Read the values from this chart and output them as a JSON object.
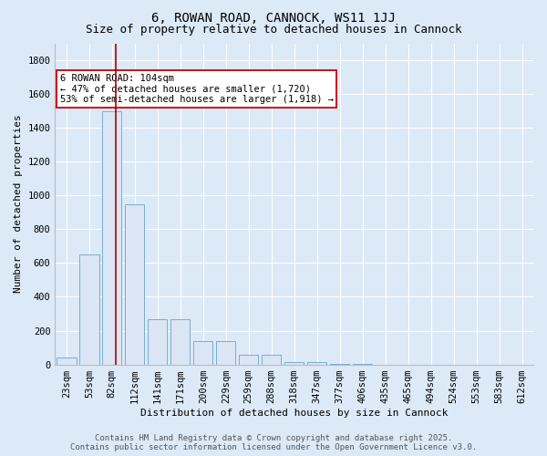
{
  "title_line1": "6, ROWAN ROAD, CANNOCK, WS11 1JJ",
  "title_line2": "Size of property relative to detached houses in Cannock",
  "xlabel": "Distribution of detached houses by size in Cannock",
  "ylabel": "Number of detached properties",
  "categories": [
    "23sqm",
    "53sqm",
    "82sqm",
    "112sqm",
    "141sqm",
    "171sqm",
    "200sqm",
    "229sqm",
    "259sqm",
    "288sqm",
    "318sqm",
    "347sqm",
    "377sqm",
    "406sqm",
    "435sqm",
    "465sqm",
    "494sqm",
    "524sqm",
    "553sqm",
    "583sqm",
    "612sqm"
  ],
  "values": [
    40,
    650,
    1500,
    950,
    270,
    270,
    140,
    140,
    55,
    55,
    15,
    15,
    5,
    5,
    0,
    0,
    0,
    0,
    0,
    0,
    0
  ],
  "bar_color": "#dae6f3",
  "bar_edge_color": "#7aadd4",
  "background_color": "#dce9f7",
  "grid_color": "#c8daf0",
  "vline_color": "#aa0000",
  "vline_x_index": 2.15,
  "annotation_text": "6 ROWAN ROAD: 104sqm\n← 47% of detached houses are smaller (1,720)\n53% of semi-detached houses are larger (1,918) →",
  "annotation_box_color": "#ffffff",
  "annotation_box_edge": "#cc0000",
  "ylim": [
    0,
    1900
  ],
  "yticks": [
    0,
    200,
    400,
    600,
    800,
    1000,
    1200,
    1400,
    1600,
    1800
  ],
  "footer_line1": "Contains HM Land Registry data © Crown copyright and database right 2025.",
  "footer_line2": "Contains public sector information licensed under the Open Government Licence v3.0.",
  "title_fontsize": 10,
  "subtitle_fontsize": 9,
  "axis_label_fontsize": 8,
  "tick_fontsize": 7.5,
  "annotation_fontsize": 7.5,
  "footer_fontsize": 6.5
}
